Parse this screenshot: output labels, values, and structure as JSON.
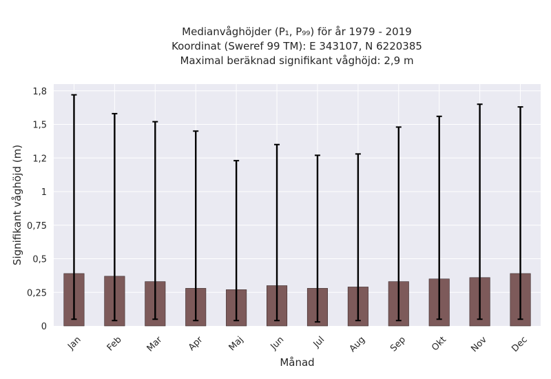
{
  "chart_data": {
    "type": "bar",
    "title_lines": [
      "Medianvåghöjder (P₁, P₉₉) för år 1979 - 2019",
      "Koordinat (Sweref 99 TM): E 343107, N 6220385",
      "Maximal beräknad signifikant våghöjd: 2,9 m"
    ],
    "xlabel": "Månad",
    "ylabel": "Signifikant våghöjd (m)",
    "categories": [
      "Jan",
      "Feb",
      "Mar",
      "Apr",
      "Maj",
      "Jun",
      "Jul",
      "Aug",
      "Sep",
      "Okt",
      "Nov",
      "Dec"
    ],
    "series": [
      {
        "values": [
          0.39,
          0.37,
          0.33,
          0.28,
          0.27,
          0.3,
          0.28,
          0.29,
          0.33,
          0.35,
          0.36,
          0.39
        ],
        "err_low": [
          0.05,
          0.04,
          0.05,
          0.04,
          0.04,
          0.04,
          0.03,
          0.04,
          0.04,
          0.05,
          0.05,
          0.05
        ],
        "err_high": [
          1.72,
          1.58,
          1.52,
          1.45,
          1.23,
          1.35,
          1.27,
          1.28,
          1.48,
          1.56,
          1.65,
          1.63
        ]
      }
    ],
    "yticks": [
      0,
      0.25,
      0.5,
      0.75,
      1,
      1.25,
      1.5,
      1.75
    ],
    "ytick_labels": [
      "0",
      "0,25",
      "0,5",
      "0,75",
      "1",
      "1,2",
      "1,5",
      "1,8"
    ],
    "ylim": [
      0,
      1.8
    ],
    "grid": true,
    "colors": {
      "bar": "#7d5a5a",
      "background": "#eaeaf2",
      "errorbar": "#000000",
      "grid": "#ffffff"
    }
  }
}
